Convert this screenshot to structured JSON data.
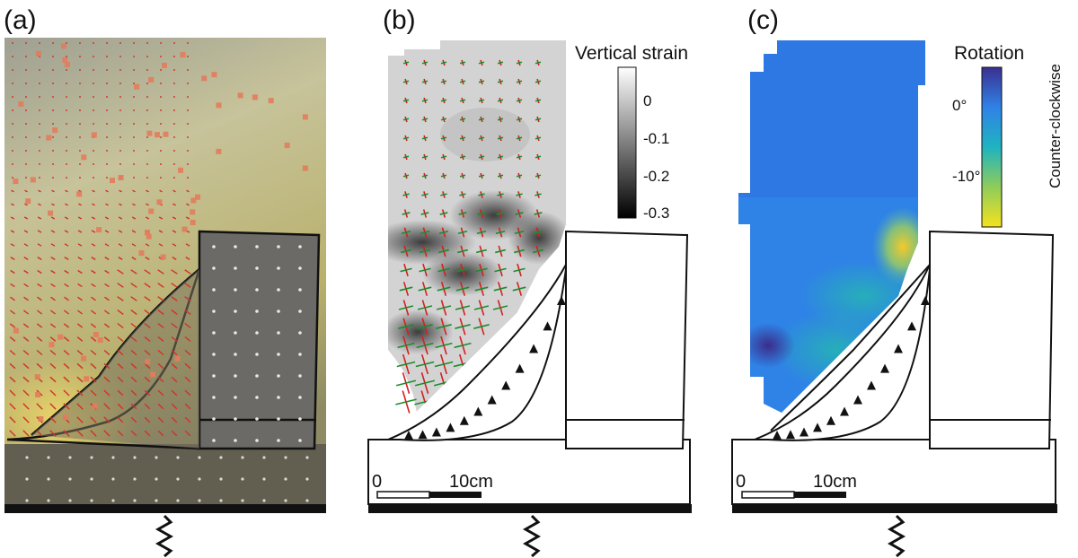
{
  "panels": {
    "a": {
      "label": "(a)"
    },
    "b": {
      "label": "(b)",
      "colorbar": {
        "title": "Vertical strain",
        "ticks": [
          "0",
          "-0.1",
          "-0.2",
          "-0.3"
        ],
        "colors": [
          "#ffffff",
          "#000000"
        ]
      },
      "scale": {
        "zero": "0",
        "length": "10cm"
      }
    },
    "c": {
      "label": "(c)",
      "colorbar": {
        "title": "Rotation",
        "ticks": [
          "0°",
          "-10°"
        ],
        "side_label": "Counter-clockwise",
        "colors": [
          "#3a2f8f",
          "#2f82e6",
          "#1fb3c0",
          "#8fcc5a",
          "#f5e21e"
        ]
      },
      "scale": {
        "zero": "0",
        "length": "10cm"
      }
    }
  },
  "colors": {
    "strain_arrow": "#d42020",
    "strain_cross": "#1e8c2a",
    "photo_grid": "#d2302a",
    "marker": "#e27c5c"
  }
}
